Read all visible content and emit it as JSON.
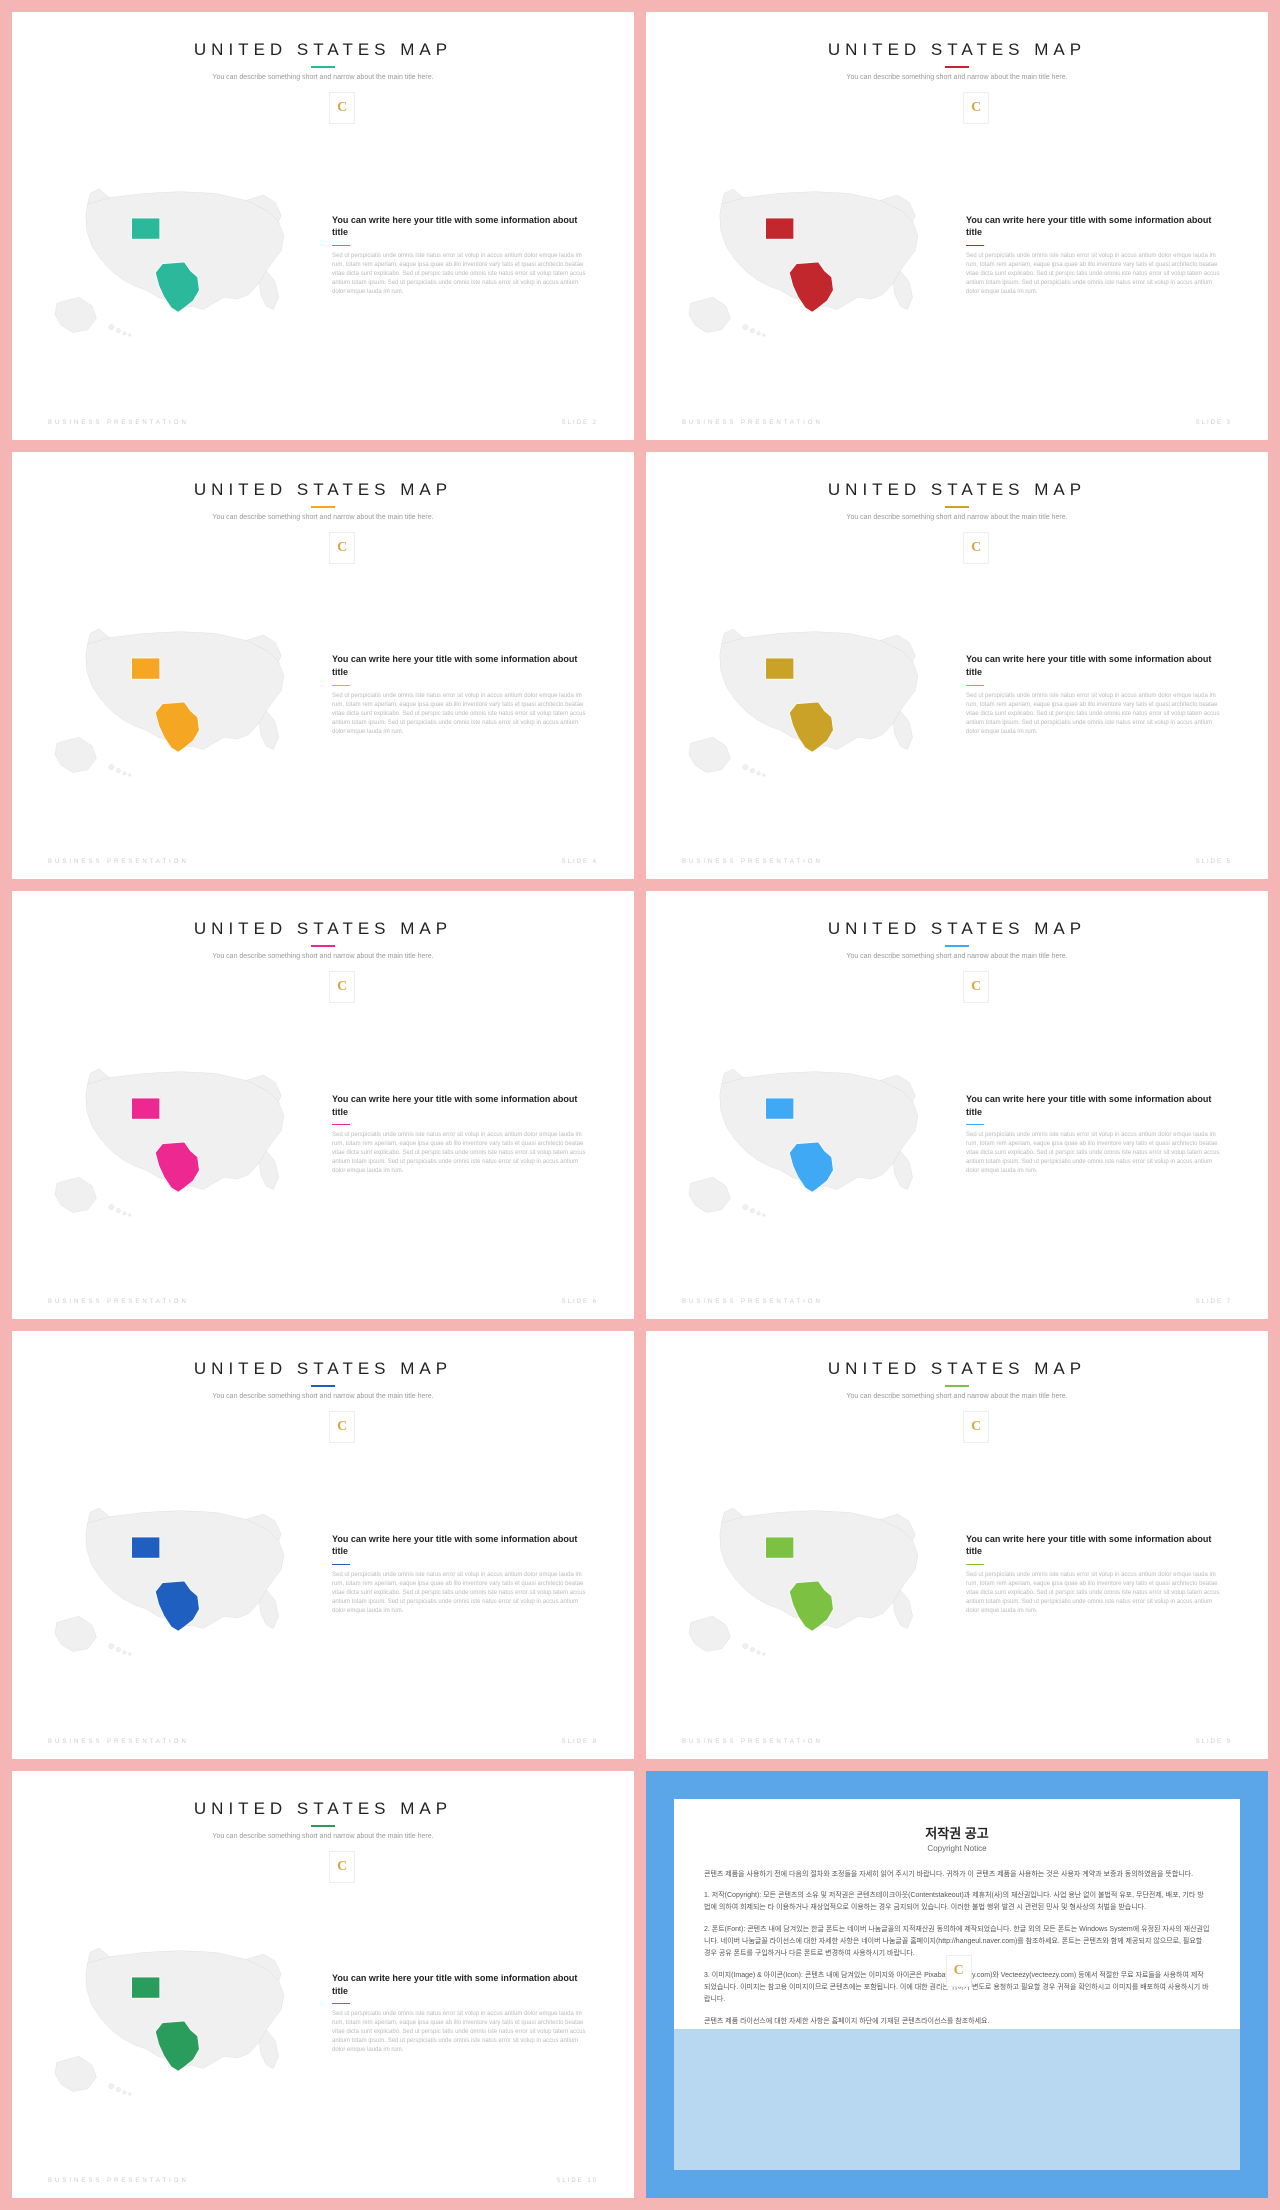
{
  "slides": [
    {
      "accent": "#2cb89a",
      "num": "2"
    },
    {
      "accent": "#c1272d",
      "num": "3"
    },
    {
      "accent": "#f5a623",
      "num": "4"
    },
    {
      "accent": "#c9a227",
      "num": "5"
    },
    {
      "accent": "#ed2891",
      "num": "6"
    },
    {
      "accent": "#3fa9f5",
      "num": "7"
    },
    {
      "accent": "#1f5fbf",
      "num": "8"
    },
    {
      "accent": "#7cc142",
      "num": "9"
    },
    {
      "accent": "#2a9d5c",
      "num": "10"
    }
  ],
  "common": {
    "title": "UNITED STATES MAP",
    "subtitle": "You can describe something short and narrow about the main title here.",
    "textTitle": "You can write here your title with some information about title",
    "textBody": "Sed ut perspiciatis unde omnis iste natus error sit volup in accus antium dolor emque lauda im rum, totam rem aperiam, eaque ipsa quae ab illo inventore vary tatis et quasi architecto beatae vitae dicta sunt explicabo. Sed ut perspic tatis unde omnis iste natus error sit volup tatem accus antium totam ipsum. Sed ut perspiciatis unde omnis iste natus error sit volup in accus antium dolor emque lauda im rum.",
    "footerLeft": "BUSINESS PRESENTATION",
    "footerRight": "SLIDE",
    "logo": "C"
  },
  "copyright": {
    "title": "저작권 공고",
    "sub": "Copyright Notice",
    "p1": "콘텐츠 제품을 사용하기 전에 다음의 절차와 조정들을 자세히 읽어 주시기 바랍니다. 귀하가 이 콘텐츠 제품을 사용하는 것은 사용자 계약과 보증과 동의하였음을 뜻합니다.",
    "p2": "1. 저작(Copyright): 모든 콘텐츠의 소유 및 저작권은 콘텐츠테이크아웃(Contentstakeout)과 제휴처(사)의 재산권입니다. 사업 용난 없이 불법적 유포, 무단전제, 배포, 기타 방법에 의하여 희제되는 타 이용하거나 재상업적으로 이용하는 경우 금지되어 있습니다. 이러한 불법 행위 발견 시 관련된 민사 및 형사상의 처벌을 받습니다.",
    "p3": "2. 폰트(Font): 콘텐츠 내에 담겨있는 한글 폰트는 네이버 나눔글꼴의 지적재산권 동의하에 제작되었습니다. 한글 외의 모든 폰트는 Windows System에 유정된 자사의 재산권입니다. 네이버 나눔글꼴 라이선스에 대한 자세한 사항은 네이버 나눔글꼴 홈페이지(http://hangeul.naver.com)를 참조하세요. 폰트는 콘텐츠와 함께 제공되지 않으므로, 필요할 경우 공유 폰트를 구입하거나 다른 폰트로 변경하여 사용하시기 바랍니다.",
    "p4": "3. 이미지(Image) & 아이콘(Icon): 콘텐츠 내에 담겨있는 이미지와 아이콘은 Pixabay(pixabay.com)와 Vecteezy(vecteezy.com) 등에서 적절한 무료 자료들을 사용하여 제작되었습니다. 이미지는 참고용 이미지이므로 콘텐츠에는 포함됩니다. 이에 대한 권리는 귀하가 변도로 용청하고 필요할 경우 귀적을 확인하시고 이미지를 배포하여 사용하시기 바랍니다.",
    "p5": "콘텐츠 제품 라이선스에 대한 자세한 사항은 홈페이지 하단에 기재된 콘텐츠라이선스를 참조하세요."
  },
  "styling": {
    "background": "#f5b5b5",
    "slide_bg": "#ffffff",
    "map_base": "#f0f0f0",
    "map_stroke": "#dddddd",
    "text_muted": "#bbbbbb",
    "copyright_border": "#5aa6e8",
    "copyright_lower": "#b8d7f0"
  }
}
